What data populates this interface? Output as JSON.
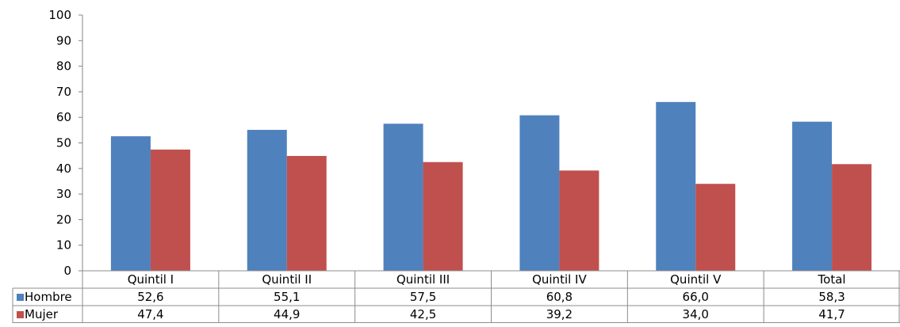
{
  "chart_data": {
    "type": "bar",
    "categories": [
      "Quintil I",
      "Quintil II",
      "Quintil III",
      "Quintil IV",
      "Quintil V",
      "Total"
    ],
    "series": [
      {
        "name": "Hombre",
        "color": "#4f81bd",
        "values": [
          52.6,
          55.1,
          57.5,
          60.8,
          66.0,
          58.3
        ],
        "labels": [
          "52,6",
          "55,1",
          "57,5",
          "60,8",
          "66,0",
          "58,3"
        ]
      },
      {
        "name": "Mujer",
        "color": "#c0504d",
        "values": [
          47.4,
          44.9,
          42.5,
          39.2,
          34.0,
          41.7
        ],
        "labels": [
          "47,4",
          "44,9",
          "42,5",
          "39,2",
          "34,0",
          "41,7"
        ]
      }
    ],
    "ylim": [
      0,
      100
    ],
    "yticks": [
      0,
      10,
      20,
      30,
      40,
      50,
      60,
      70,
      80,
      90,
      100
    ],
    "grid": false,
    "legend": "data-table-left"
  }
}
